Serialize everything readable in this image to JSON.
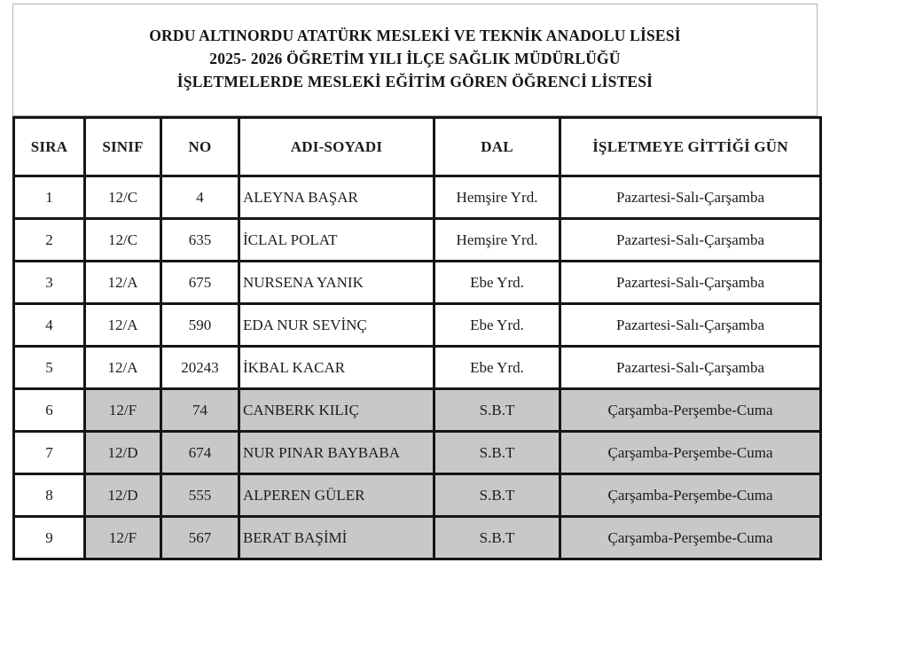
{
  "title": {
    "lines": [
      "ORDU ALTINORDU ATATÜRK MESLEKİ VE TEKNİK ANADOLU LİSESİ",
      "2025- 2026 ÖĞRETİM YILI İLÇE SAĞLIK MÜDÜRLÜĞÜ",
      "İŞLETMELERDE MESLEKİ EĞİTİM GÖREN ÖĞRENCİ LİSTESİ"
    ]
  },
  "table": {
    "columns": [
      {
        "key": "sira",
        "label": "SIRA"
      },
      {
        "key": "sinif",
        "label": "SINIF"
      },
      {
        "key": "no",
        "label": "NO"
      },
      {
        "key": "name",
        "label": "ADI-SOYADI"
      },
      {
        "key": "dal",
        "label": "DAL"
      },
      {
        "key": "days",
        "label": "İŞLETMEYE GİTTİĞİ GÜN"
      }
    ],
    "rows": [
      {
        "sira": "1",
        "sinif": "12/C",
        "no": "4",
        "name": "ALEYNA BAŞAR",
        "dal": "Hemşire Yrd.",
        "days": "Pazartesi-Salı-Çarşamba",
        "highlighted": false
      },
      {
        "sira": "2",
        "sinif": "12/C",
        "no": "635",
        "name": "İCLAL POLAT",
        "dal": "Hemşire Yrd.",
        "days": "Pazartesi-Salı-Çarşamba",
        "highlighted": false
      },
      {
        "sira": "3",
        "sinif": "12/A",
        "no": "675",
        "name": "NURSENA YANIK",
        "dal": "Ebe Yrd.",
        "days": "Pazartesi-Salı-Çarşamba",
        "highlighted": false
      },
      {
        "sira": "4",
        "sinif": "12/A",
        "no": "590",
        "name": "EDA NUR SEVİNÇ",
        "dal": "Ebe Yrd.",
        "days": "Pazartesi-Salı-Çarşamba",
        "highlighted": false
      },
      {
        "sira": "5",
        "sinif": "12/A",
        "no": "20243",
        "name": "İKBAL KACAR",
        "dal": "Ebe Yrd.",
        "days": "Pazartesi-Salı-Çarşamba",
        "highlighted": false
      },
      {
        "sira": "6",
        "sinif": "12/F",
        "no": "74",
        "name": "CANBERK KILIÇ",
        "dal": "S.B.T",
        "days": "Çarşamba-Perşembe-Cuma",
        "highlighted": true
      },
      {
        "sira": "7",
        "sinif": "12/D",
        "no": "674",
        "name": "NUR PINAR BAYBABA",
        "dal": "S.B.T",
        "days": "Çarşamba-Perşembe-Cuma",
        "highlighted": true
      },
      {
        "sira": "8",
        "sinif": "12/D",
        "no": "555",
        "name": "ALPEREN GÜLER",
        "dal": "S.B.T",
        "days": "Çarşamba-Perşembe-Cuma",
        "highlighted": true
      },
      {
        "sira": "9",
        "sinif": "12/F",
        "no": "567",
        "name": "BERAT BAŞİMİ",
        "dal": "S.B.T",
        "days": "Çarşamba-Perşembe-Cuma",
        "highlighted": true
      }
    ]
  },
  "colors": {
    "row_highlight": "#c8c8c8",
    "table_border": "#161616",
    "title_border": "#b5b5b5",
    "page_background": "#ffffff"
  }
}
